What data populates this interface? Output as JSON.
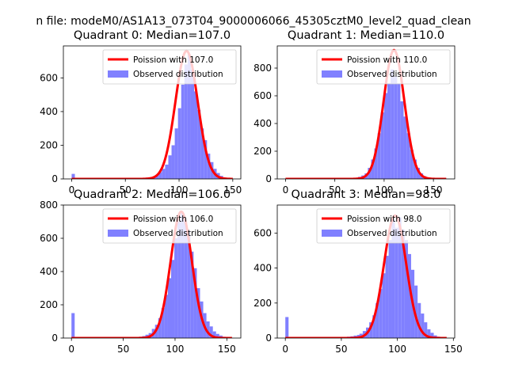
{
  "figure": {
    "suptitle": "n file: modeM0/AS1A13_073T04_9000006066_45305cztM0_level2_quad_clean"
  },
  "chart_data": [
    {
      "type": "bar",
      "title": "Quadrant 0: Median=107.0",
      "xlabel": "",
      "ylabel": "",
      "xlim": [
        -7.7,
        157.5
      ],
      "ylim": [
        0,
        790
      ],
      "xticks": [
        0,
        50,
        100,
        150
      ],
      "yticks": [
        0,
        200,
        400,
        600
      ],
      "grid": false,
      "legend_position": "upper right",
      "series": [
        {
          "name": "Poission with 107.0",
          "kind": "line",
          "color": "#ff0000",
          "mean": 107.0,
          "peak": 760,
          "x_range": [
            0,
            150
          ]
        },
        {
          "name": "Observed distribution",
          "kind": "hist",
          "color": "#8080ff",
          "bin_width": 3.0,
          "values": [
            [
              0,
              30
            ],
            [
              3,
              0
            ],
            [
              63,
              4
            ],
            [
              66,
              6
            ],
            [
              69,
              8
            ],
            [
              72,
              10
            ],
            [
              75,
              14
            ],
            [
              78,
              22
            ],
            [
              81,
              40
            ],
            [
              84,
              60
            ],
            [
              87,
              85
            ],
            [
              90,
              140
            ],
            [
              93,
              200
            ],
            [
              96,
              300
            ],
            [
              99,
              420
            ],
            [
              102,
              560
            ],
            [
              105,
              680
            ],
            [
              108,
              740
            ],
            [
              111,
              650
            ],
            [
              114,
              520
            ],
            [
              117,
              410
            ],
            [
              120,
              300
            ],
            [
              123,
              230
            ],
            [
              126,
              150
            ],
            [
              129,
              100
            ],
            [
              132,
              60
            ],
            [
              135,
              35
            ],
            [
              138,
              18
            ],
            [
              141,
              8
            ],
            [
              144,
              4
            ],
            [
              147,
              2
            ]
          ]
        }
      ]
    },
    {
      "type": "bar",
      "title": "Quadrant 1: Median=110.0",
      "xlabel": "",
      "ylabel": "",
      "xlim": [
        -8.4,
        171.6
      ],
      "ylim": [
        0,
        960
      ],
      "xticks": [
        0,
        50,
        100,
        150
      ],
      "yticks": [
        0,
        200,
        400,
        600,
        800
      ],
      "grid": false,
      "legend_position": "upper right",
      "series": [
        {
          "name": "Poission with 110.0",
          "kind": "line",
          "color": "#ff0000",
          "mean": 110.0,
          "peak": 930,
          "x_range": [
            0,
            163
          ]
        },
        {
          "name": "Observed distribution",
          "kind": "hist",
          "color": "#8080ff",
          "bin_width": 3.27,
          "values": [
            [
              0,
              8
            ],
            [
              67,
              4
            ],
            [
              70.3,
              8
            ],
            [
              73.6,
              15
            ],
            [
              76.9,
              25
            ],
            [
              80.2,
              40
            ],
            [
              83.5,
              80
            ],
            [
              86.8,
              140
            ],
            [
              90.1,
              220
            ],
            [
              93.4,
              330
            ],
            [
              96.7,
              480
            ],
            [
              100,
              620
            ],
            [
              103.3,
              690
            ],
            [
              106.6,
              790
            ],
            [
              109.9,
              740
            ],
            [
              113.2,
              690
            ],
            [
              116.5,
              560
            ],
            [
              119.8,
              450
            ],
            [
              123.1,
              330
            ],
            [
              126.4,
              210
            ],
            [
              129.7,
              140
            ],
            [
              133,
              80
            ],
            [
              136.3,
              40
            ],
            [
              139.6,
              20
            ],
            [
              142.9,
              8
            ],
            [
              146.2,
              4
            ]
          ]
        }
      ]
    },
    {
      "type": "bar",
      "title": "Quadrant 2: Median=106.0",
      "xlabel": "",
      "ylabel": "",
      "xlim": [
        -7.8,
        163.5
      ],
      "ylim": [
        0,
        800
      ],
      "xticks": [
        0,
        50,
        100,
        150
      ],
      "yticks": [
        0,
        200,
        400,
        600,
        800
      ],
      "grid": false,
      "legend_position": "upper right",
      "series": [
        {
          "name": "Poission with 106.0",
          "kind": "line",
          "color": "#ff0000",
          "mean": 106.0,
          "peak": 760,
          "x_range": [
            0,
            155
          ]
        },
        {
          "name": "Observed distribution",
          "kind": "hist",
          "color": "#8080ff",
          "bin_width": 3.11,
          "values": [
            [
              0,
              150
            ],
            [
              3.1,
              0
            ],
            [
              59,
              3
            ],
            [
              62.1,
              5
            ],
            [
              65.2,
              8
            ],
            [
              68.3,
              12
            ],
            [
              71.4,
              20
            ],
            [
              74.5,
              30
            ],
            [
              77.6,
              55
            ],
            [
              80.7,
              80
            ],
            [
              83.8,
              120
            ],
            [
              86.9,
              180
            ],
            [
              90,
              260
            ],
            [
              93.1,
              360
            ],
            [
              96.2,
              470
            ],
            [
              99.3,
              600
            ],
            [
              102.4,
              700
            ],
            [
              105.5,
              750
            ],
            [
              108.6,
              700
            ],
            [
              111.7,
              640
            ],
            [
              114.8,
              520
            ],
            [
              117.9,
              420
            ],
            [
              121,
              300
            ],
            [
              124.1,
              220
            ],
            [
              127.2,
              150
            ],
            [
              130.3,
              100
            ],
            [
              133.4,
              70
            ],
            [
              136.5,
              40
            ],
            [
              139.6,
              25
            ],
            [
              142.7,
              15
            ],
            [
              145.8,
              8
            ],
            [
              148.9,
              4
            ]
          ]
        }
      ]
    },
    {
      "type": "bar",
      "title": "Quadrant 3: Median=98.0",
      "xlabel": "",
      "ylabel": "",
      "xlim": [
        -7.2,
        151.2
      ],
      "ylim": [
        0,
        760
      ],
      "xticks": [
        0,
        50,
        100,
        150
      ],
      "yticks": [
        0,
        200,
        400,
        600
      ],
      "grid": false,
      "legend_position": "upper right",
      "series": [
        {
          "name": "Poission with 98.0",
          "kind": "line",
          "color": "#ff0000",
          "mean": 98.0,
          "peak": 700,
          "x_range": [
            0,
            144
          ]
        },
        {
          "name": "Observed distribution",
          "kind": "hist",
          "color": "#8080ff",
          "bin_width": 2.88,
          "values": [
            [
              0,
              120
            ],
            [
              2.9,
              0
            ],
            [
              40,
              3
            ],
            [
              43,
              4
            ],
            [
              46,
              5
            ],
            [
              52,
              6
            ],
            [
              55,
              8
            ],
            [
              58,
              10
            ],
            [
              61,
              14
            ],
            [
              64,
              18
            ],
            [
              66.2,
              25
            ],
            [
              69.1,
              40
            ],
            [
              72,
              60
            ],
            [
              74.9,
              90
            ],
            [
              77.8,
              130
            ],
            [
              80.6,
              200
            ],
            [
              83.5,
              280
            ],
            [
              86.4,
              370
            ],
            [
              89.3,
              470
            ],
            [
              92.2,
              560
            ],
            [
              95,
              680
            ],
            [
              97.9,
              630
            ],
            [
              100.8,
              690
            ],
            [
              103.7,
              620
            ],
            [
              106.6,
              560
            ],
            [
              109.4,
              480
            ],
            [
              112.3,
              390
            ],
            [
              115.2,
              300
            ],
            [
              118.1,
              200
            ],
            [
              121,
              140
            ],
            [
              123.8,
              90
            ],
            [
              126.7,
              50
            ],
            [
              129.6,
              30
            ],
            [
              132.5,
              15
            ],
            [
              135.4,
              8
            ],
            [
              138.2,
              4
            ]
          ]
        }
      ]
    }
  ]
}
